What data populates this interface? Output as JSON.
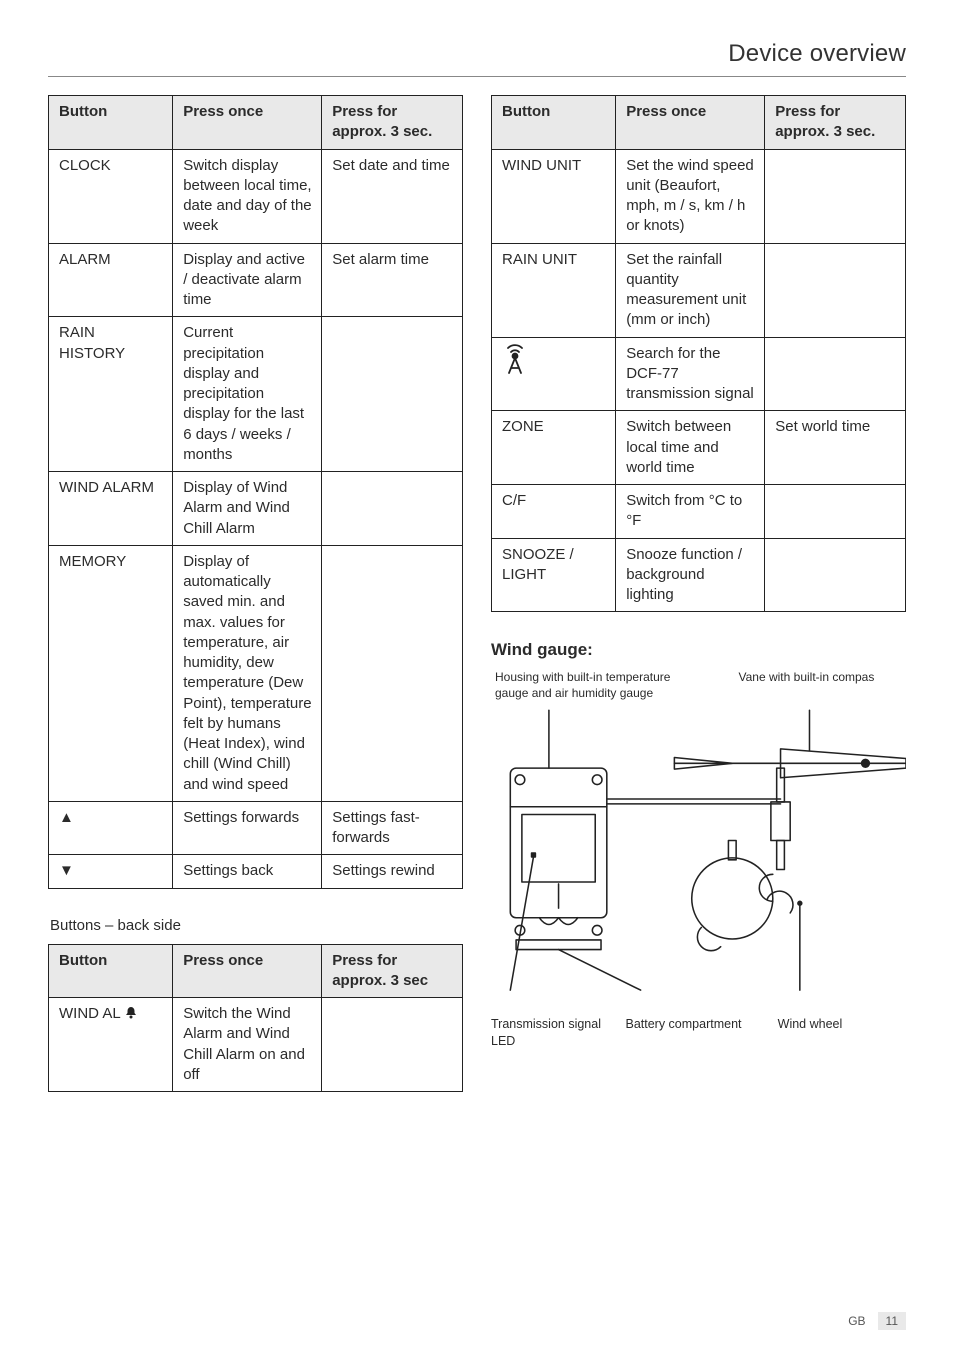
{
  "header": "Device overview",
  "left_table": {
    "headers": [
      "Button",
      "Press once",
      "Press for approx. 3 sec."
    ],
    "rows": [
      [
        "CLOCK",
        "Switch display between local time, date and day of the week",
        "Set date and time"
      ],
      [
        "ALARM",
        "Display and active / deactivate alarm time",
        "Set alarm time"
      ],
      [
        "RAIN HISTORY",
        "Current precipitation display and precipitation display for the last 6 days / weeks / months",
        ""
      ],
      [
        "WIND ALARM",
        "Display of Wind Alarm and Wind Chill Alarm",
        ""
      ],
      [
        "MEMORY",
        "Display of automatically saved min. and max. values for temperature, air humidity, dew temperature (Dew Point), temperature felt by humans (Heat Index), wind chill (Wind Chill) and wind speed",
        ""
      ],
      [
        "▲",
        "Settings forwards",
        "Settings fast-forwards"
      ],
      [
        "▼",
        "Settings back",
        "Settings rewind"
      ]
    ]
  },
  "back_caption": "Buttons – back side",
  "back_table": {
    "headers": [
      "Button",
      "Press once",
      "Press for approx. 3 sec"
    ],
    "rows": [
      [
        "WIND AL 🔔",
        "Switch the Wind Alarm and Wind Chill Alarm on and off",
        ""
      ]
    ]
  },
  "right_table": {
    "headers": [
      "Button",
      "Press once",
      "Press for approx. 3 sec."
    ],
    "rows": [
      [
        "WIND UNIT",
        "Set the wind speed unit (Beaufort, mph, m / s, km / h or knots)",
        ""
      ],
      [
        "RAIN UNIT",
        "Set the rainfall quantity measurement unit (mm or inch)",
        ""
      ],
      [
        "__RADIO_ICON__",
        "Search for the DCF-77 transmission signal",
        ""
      ],
      [
        "ZONE",
        "Switch between local time and world time",
        "Set world time"
      ],
      [
        "C/F",
        "Switch from °C to °F",
        ""
      ],
      [
        "SNOOZE / LIGHT",
        "Snooze function / background lighting",
        ""
      ]
    ]
  },
  "wind_gauge": {
    "heading": "Wind gauge:",
    "labels": {
      "top_left": "Housing with built-in temperature gauge and air humidity gauge",
      "top_right": "Vane with built-in compas",
      "bottom_1": "Transmission signal LED",
      "bottom_2": "Battery compartment",
      "bottom_3": "Wind wheel"
    },
    "colors": {
      "stroke": "#222222",
      "fill_body": "#ffffff",
      "fill_shade": "#ffffff"
    }
  },
  "footer": {
    "country": "GB",
    "page": "11"
  }
}
